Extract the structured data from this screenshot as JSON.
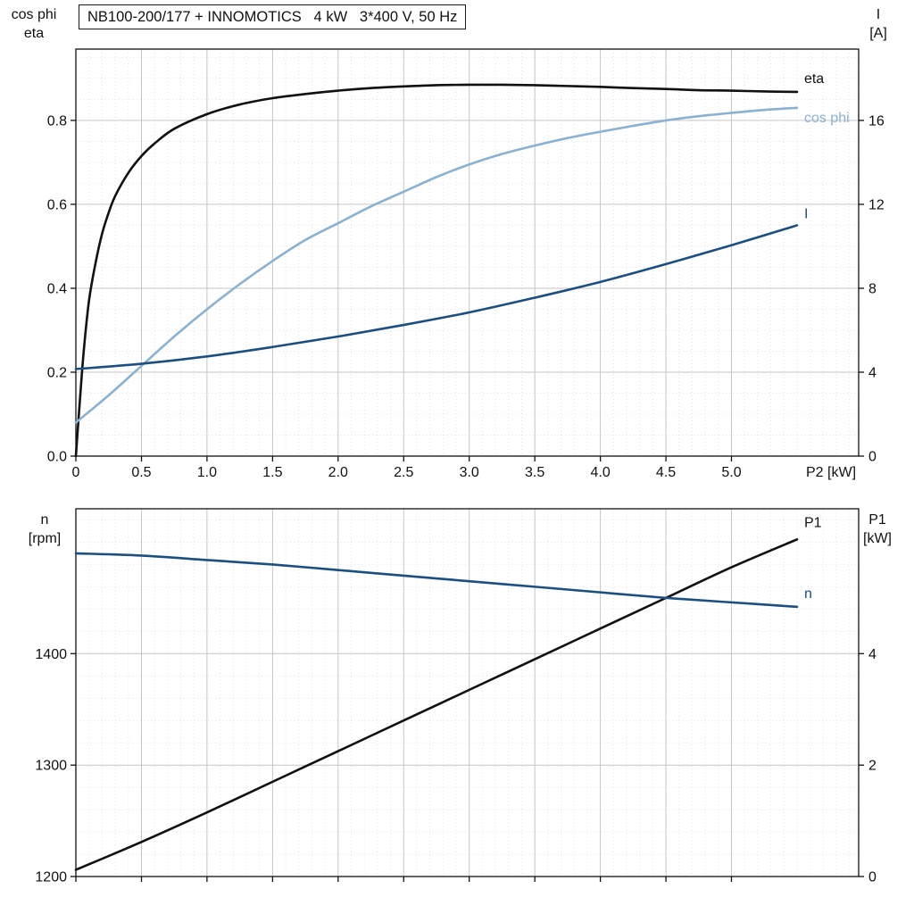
{
  "title_box": {
    "text": "NB100-200/177 + INNOMOTICS   4 kW   3*400 V, 50 Hz"
  },
  "colors": {
    "black": "#111111",
    "light_blue": "#8ab1d1",
    "dark_blue": "#1c4f80",
    "grid_major": "#c6c6c6",
    "grid_minor": "#e2e2e2",
    "frame": "#111111"
  },
  "chart_data": [
    {
      "type": "line",
      "title": "NB100-200/177 + INNOMOTICS   4 kW   3*400 V, 50 Hz",
      "xlabel": "P2 [kW]",
      "ylabel_left": "cos phi\neta",
      "ylabel_right": "I\n[A]",
      "xlim": [
        0,
        5.97
      ],
      "xticks": [
        0,
        0.5,
        1,
        1.5,
        2,
        2.5,
        3,
        3.5,
        4,
        4.5,
        5
      ],
      "xtick_labels": [
        "0",
        "0.5",
        "1.0",
        "1.5",
        "2.0",
        "2.5",
        "3.0",
        "3.5",
        "4.0",
        "4.5",
        "5.0"
      ],
      "x_minor_step": 0.1,
      "ylim_left": [
        0,
        0.97
      ],
      "yticks_left": [
        0,
        0.2,
        0.4,
        0.6,
        0.8
      ],
      "ytick_labels_left": [
        "0.0",
        "0.2",
        "0.4",
        "0.6",
        "0.8"
      ],
      "y_minor_step_left": 0.05,
      "ylim_right": [
        0,
        19.4
      ],
      "yticks_right": [
        0,
        4,
        8,
        12,
        16
      ],
      "ytick_labels_right": [
        "0",
        "4",
        "8",
        "12",
        "16"
      ],
      "grid": true,
      "series": [
        {
          "name": "eta",
          "axis": "left",
          "color": "black",
          "label": "eta",
          "label_dy": -10,
          "x": [
            0,
            0.03,
            0.06,
            0.1,
            0.15,
            0.2,
            0.25,
            0.3,
            0.4,
            0.5,
            0.6,
            0.75,
            1,
            1.25,
            1.5,
            1.75,
            2,
            2.25,
            2.5,
            2.75,
            3,
            3.25,
            3.5,
            3.75,
            4,
            4.25,
            4.5,
            4.75,
            5,
            5.25,
            5.5
          ],
          "y": [
            0,
            0.13,
            0.25,
            0.37,
            0.46,
            0.53,
            0.58,
            0.62,
            0.675,
            0.715,
            0.745,
            0.78,
            0.815,
            0.838,
            0.853,
            0.863,
            0.871,
            0.877,
            0.881,
            0.884,
            0.885,
            0.885,
            0.884,
            0.882,
            0.88,
            0.877,
            0.875,
            0.872,
            0.871,
            0.869,
            0.868
          ]
        },
        {
          "name": "cos phi",
          "axis": "left",
          "color": "light_blue",
          "label": "cos phi",
          "label_dy": 16,
          "x": [
            0,
            0.25,
            0.5,
            0.75,
            1,
            1.25,
            1.5,
            1.75,
            2,
            2.25,
            2.5,
            2.75,
            3,
            3.25,
            3.5,
            3.75,
            4,
            4.25,
            4.5,
            4.75,
            5,
            5.25,
            5.5
          ],
          "y": [
            0.08,
            0.145,
            0.215,
            0.285,
            0.35,
            0.41,
            0.465,
            0.515,
            0.555,
            0.595,
            0.63,
            0.665,
            0.695,
            0.72,
            0.74,
            0.758,
            0.773,
            0.787,
            0.8,
            0.81,
            0.818,
            0.825,
            0.83
          ]
        },
        {
          "name": "I",
          "axis": "right",
          "color": "dark_blue",
          "label": "I",
          "label_dy": -8,
          "x": [
            0,
            0.5,
            1,
            1.5,
            2,
            2.5,
            3,
            3.5,
            4,
            4.5,
            5,
            5.5
          ],
          "y": [
            4.15,
            4.4,
            4.75,
            5.2,
            5.7,
            6.25,
            6.85,
            7.55,
            8.3,
            9.15,
            10.05,
            11.0
          ]
        }
      ]
    },
    {
      "type": "line",
      "xlabel": "",
      "ylabel_left": "n\n[rpm]",
      "ylabel_right": "P1\n[kW]",
      "xlim": [
        0,
        5.97
      ],
      "xticks": [
        0,
        0.5,
        1,
        1.5,
        2,
        2.5,
        3,
        3.5,
        4,
        4.5,
        5
      ],
      "xtick_labels": [],
      "x_minor_step": 0.1,
      "ylim_left": [
        1200,
        1530
      ],
      "yticks_left": [
        1200,
        1300,
        1400
      ],
      "ytick_labels_left": [
        "1200",
        "1300",
        "1400"
      ],
      "y_minor_step_left": 20,
      "ylim_right": [
        0,
        6.6
      ],
      "yticks_right": [
        0,
        2,
        4
      ],
      "ytick_labels_right": [
        "0",
        "2",
        "4"
      ],
      "grid": true,
      "series": [
        {
          "name": "P1",
          "axis": "right",
          "color": "black",
          "label": "P1",
          "label_dy": -14,
          "x": [
            0,
            0.5,
            1,
            1.5,
            2,
            2.5,
            3,
            3.5,
            4,
            4.5,
            5,
            5.5
          ],
          "y": [
            0.12,
            0.62,
            1.15,
            1.7,
            2.25,
            2.8,
            3.35,
            3.9,
            4.45,
            5.0,
            5.55,
            6.05
          ]
        },
        {
          "name": "n",
          "axis": "left",
          "color": "dark_blue",
          "label": "n",
          "label_dy": -10,
          "x": [
            0,
            0.5,
            1,
            1.5,
            2,
            2.5,
            3,
            3.5,
            4,
            4.5,
            5,
            5.5
          ],
          "y": [
            1490,
            1488,
            1484,
            1480,
            1475,
            1470,
            1465,
            1460,
            1455,
            1450,
            1446,
            1442
          ]
        }
      ]
    }
  ]
}
